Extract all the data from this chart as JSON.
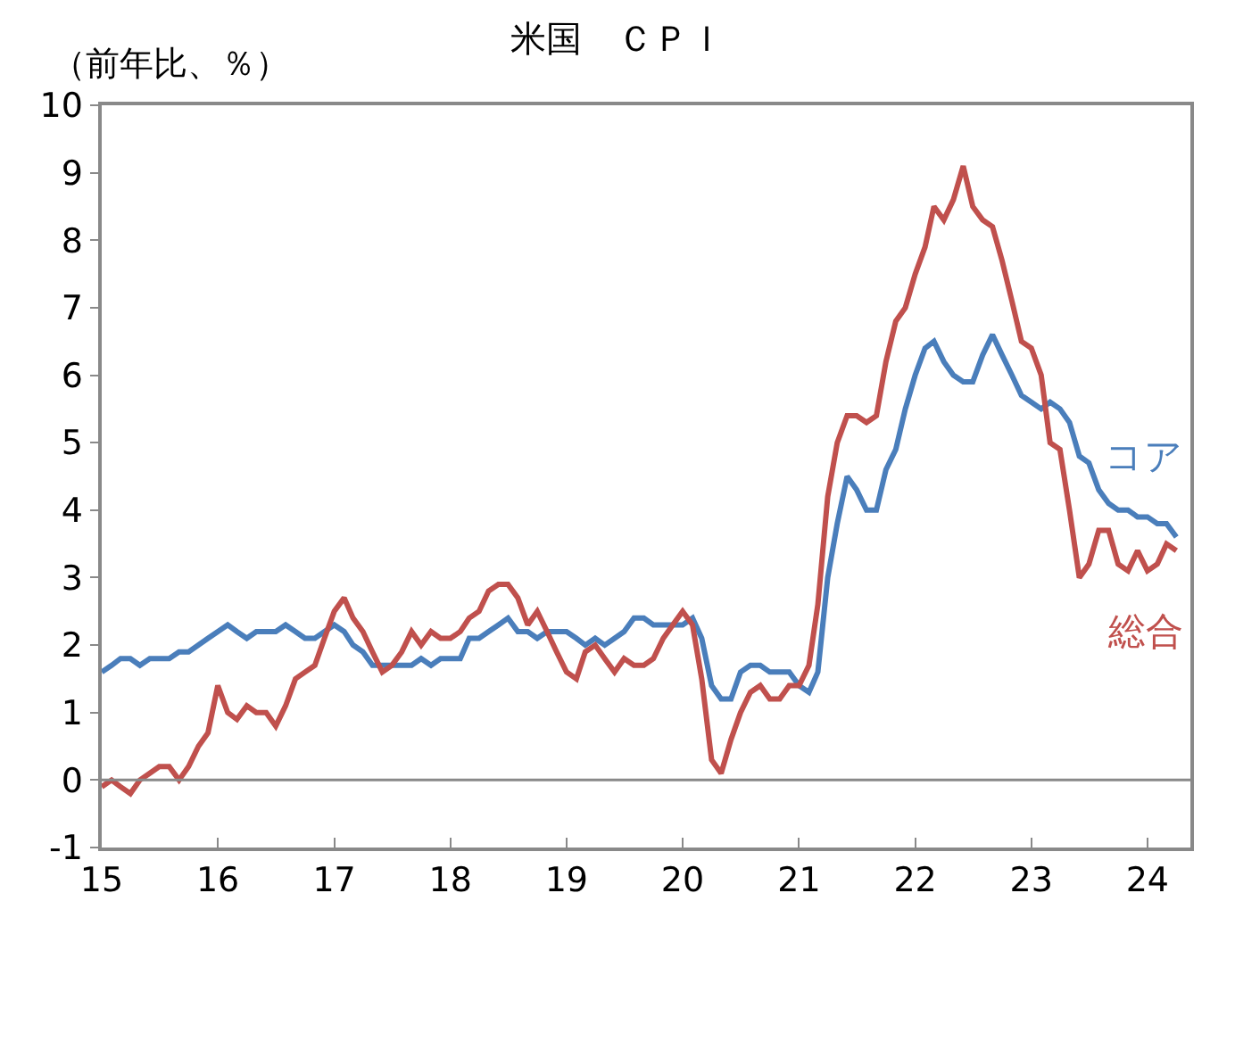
{
  "chart_data": {
    "type": "line",
    "title": "米国　ＣＰＩ",
    "ylabel": "（前年比、％）",
    "x": [
      "2015-01",
      "2015-02",
      "2015-03",
      "2015-04",
      "2015-05",
      "2015-06",
      "2015-07",
      "2015-08",
      "2015-09",
      "2015-10",
      "2015-11",
      "2015-12",
      "2016-01",
      "2016-02",
      "2016-03",
      "2016-04",
      "2016-05",
      "2016-06",
      "2016-07",
      "2016-08",
      "2016-09",
      "2016-10",
      "2016-11",
      "2016-12",
      "2017-01",
      "2017-02",
      "2017-03",
      "2017-04",
      "2017-05",
      "2017-06",
      "2017-07",
      "2017-08",
      "2017-09",
      "2017-10",
      "2017-11",
      "2017-12",
      "2018-01",
      "2018-02",
      "2018-03",
      "2018-04",
      "2018-05",
      "2018-06",
      "2018-07",
      "2018-08",
      "2018-09",
      "2018-10",
      "2018-11",
      "2018-12",
      "2019-01",
      "2019-02",
      "2019-03",
      "2019-04",
      "2019-05",
      "2019-06",
      "2019-07",
      "2019-08",
      "2019-09",
      "2019-10",
      "2019-11",
      "2019-12",
      "2020-01",
      "2020-02",
      "2020-03",
      "2020-04",
      "2020-05",
      "2020-06",
      "2020-07",
      "2020-08",
      "2020-09",
      "2020-10",
      "2020-11",
      "2020-12",
      "2021-01",
      "2021-02",
      "2021-03",
      "2021-04",
      "2021-05",
      "2021-06",
      "2021-07",
      "2021-08",
      "2021-09",
      "2021-10",
      "2021-11",
      "2021-12",
      "2022-01",
      "2022-02",
      "2022-03",
      "2022-04",
      "2022-05",
      "2022-06",
      "2022-07",
      "2022-08",
      "2022-09",
      "2022-10",
      "2022-11",
      "2022-12",
      "2023-01",
      "2023-02",
      "2023-03",
      "2023-04",
      "2023-05",
      "2023-06",
      "2023-07",
      "2023-08",
      "2023-09",
      "2023-10",
      "2023-11",
      "2023-12",
      "2024-01",
      "2024-02",
      "2024-03",
      "2024-04"
    ],
    "series": [
      {
        "name": "コア",
        "color": "#4a7ebb",
        "values": [
          1.6,
          1.7,
          1.8,
          1.8,
          1.7,
          1.8,
          1.8,
          1.8,
          1.9,
          1.9,
          2.0,
          2.1,
          2.2,
          2.3,
          2.2,
          2.1,
          2.2,
          2.2,
          2.2,
          2.3,
          2.2,
          2.1,
          2.1,
          2.2,
          2.3,
          2.2,
          2.0,
          1.9,
          1.7,
          1.7,
          1.7,
          1.7,
          1.7,
          1.8,
          1.7,
          1.8,
          1.8,
          1.8,
          2.1,
          2.1,
          2.2,
          2.3,
          2.4,
          2.2,
          2.2,
          2.1,
          2.2,
          2.2,
          2.2,
          2.1,
          2.0,
          2.1,
          2.0,
          2.1,
          2.2,
          2.4,
          2.4,
          2.3,
          2.3,
          2.3,
          2.3,
          2.4,
          2.1,
          1.4,
          1.2,
          1.2,
          1.6,
          1.7,
          1.7,
          1.6,
          1.6,
          1.6,
          1.4,
          1.3,
          1.6,
          3.0,
          3.8,
          4.5,
          4.3,
          4.0,
          4.0,
          4.6,
          4.9,
          5.5,
          6.0,
          6.4,
          6.5,
          6.2,
          6.0,
          5.9,
          5.9,
          6.3,
          6.6,
          6.3,
          6.0,
          5.7,
          5.6,
          5.5,
          5.6,
          5.5,
          5.3,
          4.8,
          4.7,
          4.3,
          4.1,
          4.0,
          4.0,
          3.9,
          3.9,
          3.8,
          3.8,
          3.6
        ]
      },
      {
        "name": "総合",
        "color": "#c0504d",
        "values": [
          -0.1,
          0.0,
          -0.1,
          -0.2,
          0.0,
          0.1,
          0.2,
          0.2,
          0.0,
          0.2,
          0.5,
          0.7,
          1.4,
          1.0,
          0.9,
          1.1,
          1.0,
          1.0,
          0.8,
          1.1,
          1.5,
          1.6,
          1.7,
          2.1,
          2.5,
          2.7,
          2.4,
          2.2,
          1.9,
          1.6,
          1.7,
          1.9,
          2.2,
          2.0,
          2.2,
          2.1,
          2.1,
          2.2,
          2.4,
          2.5,
          2.8,
          2.9,
          2.9,
          2.7,
          2.3,
          2.5,
          2.2,
          1.9,
          1.6,
          1.5,
          1.9,
          2.0,
          1.8,
          1.6,
          1.8,
          1.7,
          1.7,
          1.8,
          2.1,
          2.3,
          2.5,
          2.3,
          1.5,
          0.3,
          0.1,
          0.6,
          1.0,
          1.3,
          1.4,
          1.2,
          1.2,
          1.4,
          1.4,
          1.7,
          2.6,
          4.2,
          5.0,
          5.4,
          5.4,
          5.3,
          5.4,
          6.2,
          6.8,
          7.0,
          7.5,
          7.9,
          8.5,
          8.3,
          8.6,
          9.1,
          8.5,
          8.3,
          8.2,
          7.7,
          7.1,
          6.5,
          6.4,
          6.0,
          5.0,
          4.9,
          4.0,
          3.0,
          3.2,
          3.7,
          3.7,
          3.2,
          3.1,
          3.4,
          3.1,
          3.2,
          3.5,
          3.4
        ]
      }
    ],
    "xlim": [
      "2015-01-01",
      "2024-05-15"
    ],
    "xticks": [
      {
        "value": "2015-01",
        "label": "15"
      },
      {
        "value": "2016-01",
        "label": "16"
      },
      {
        "value": "2017-01",
        "label": "17"
      },
      {
        "value": "2018-01",
        "label": "18"
      },
      {
        "value": "2019-01",
        "label": "19"
      },
      {
        "value": "2020-01",
        "label": "20"
      },
      {
        "value": "2021-01",
        "label": "21"
      },
      {
        "value": "2022-01",
        "label": "22"
      },
      {
        "value": "2023-01",
        "label": "23"
      },
      {
        "value": "2024-01",
        "label": "24"
      }
    ],
    "ylim": [
      -1,
      10
    ],
    "yticks": [
      -1,
      0,
      1,
      2,
      3,
      4,
      5,
      6,
      7,
      8,
      9,
      10
    ],
    "ref_lines": [
      {
        "axis": "y",
        "value": 0,
        "color": "#898989"
      }
    ],
    "legend": false,
    "marker": "none",
    "line_style": "solid"
  }
}
